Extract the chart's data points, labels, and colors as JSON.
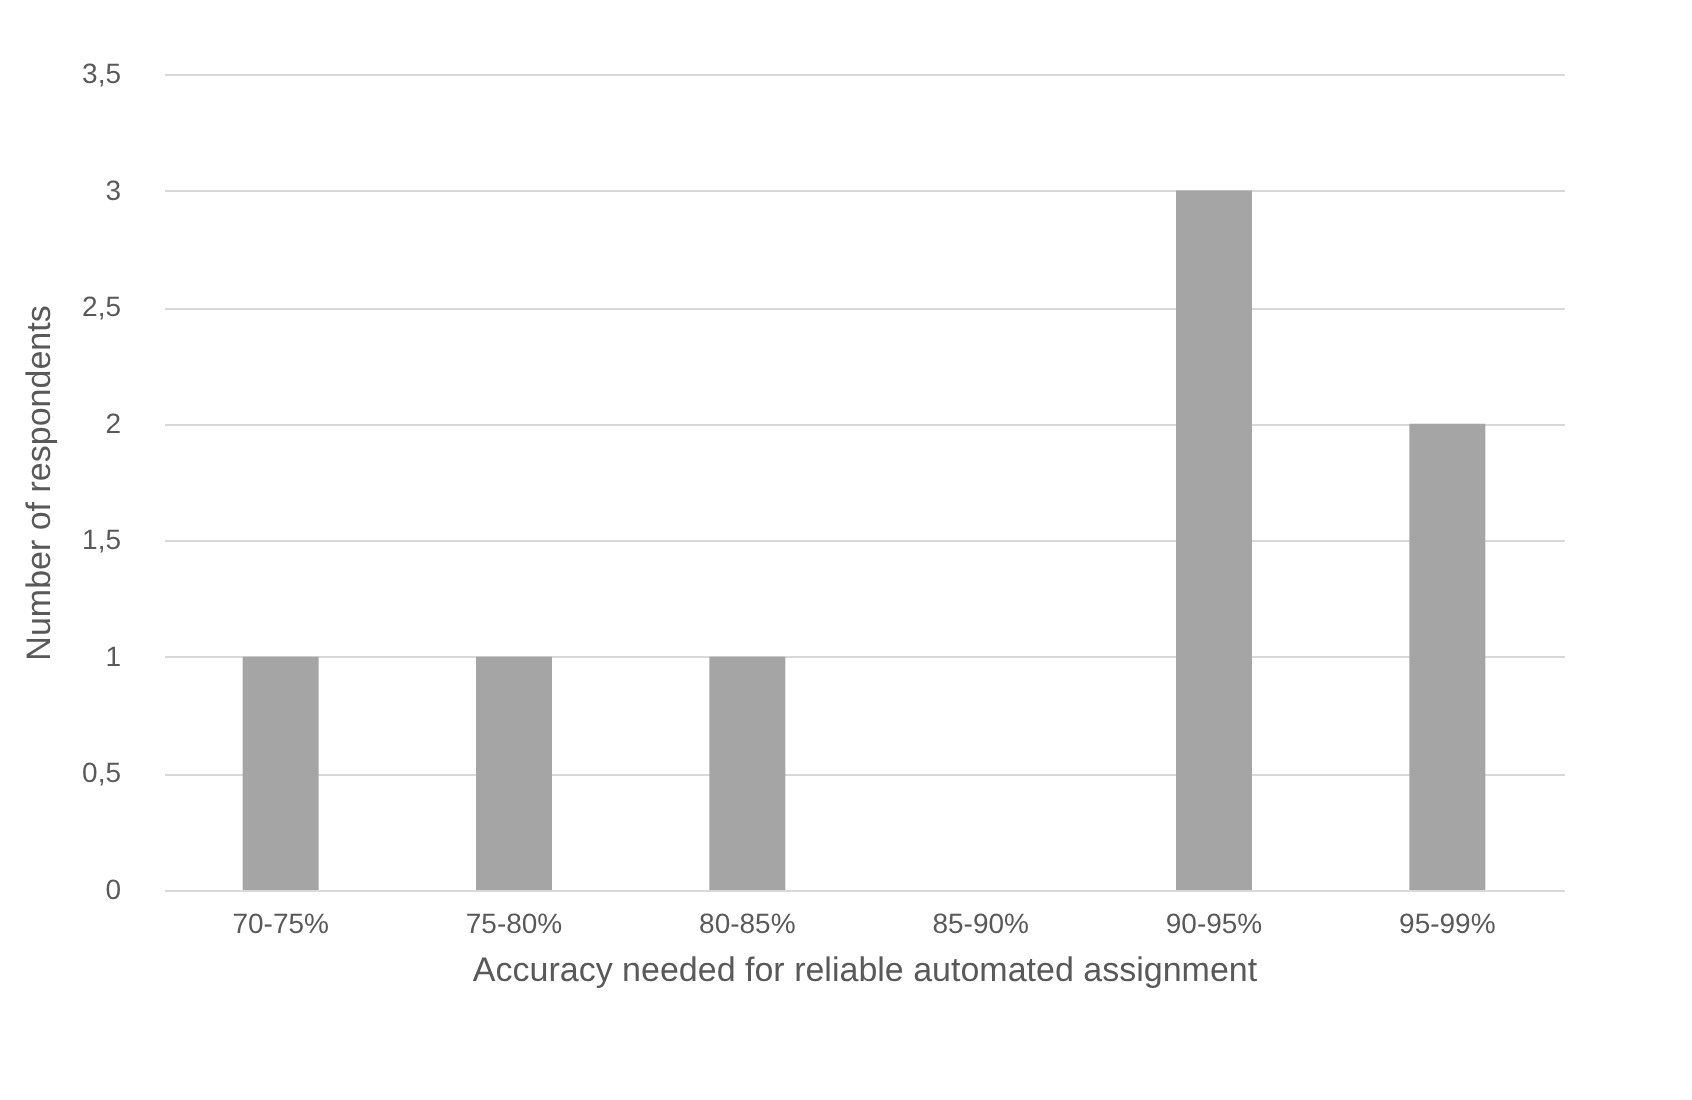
{
  "chart_data": {
    "type": "bar",
    "xlabel": "Accuracy needed for reliable automated assignment",
    "ylabel": "Number of respondents",
    "categories": [
      "70-75%",
      "75-80%",
      "80-85%",
      "85-90%",
      "90-95%",
      "95-99%"
    ],
    "values": [
      1,
      1,
      1,
      0,
      3,
      2
    ],
    "color": "#a5a5a5",
    "ylim": [
      0,
      3.5
    ],
    "yticks": [
      0,
      {
        "value": 0.5,
        "label": "0,5"
      },
      1,
      {
        "value": 1.5,
        "label": "1,5"
      },
      2,
      {
        "value": 2.5,
        "label": "2,5"
      },
      3,
      {
        "value": 3.5,
        "label": "3,5"
      }
    ],
    "grid": "y"
  }
}
